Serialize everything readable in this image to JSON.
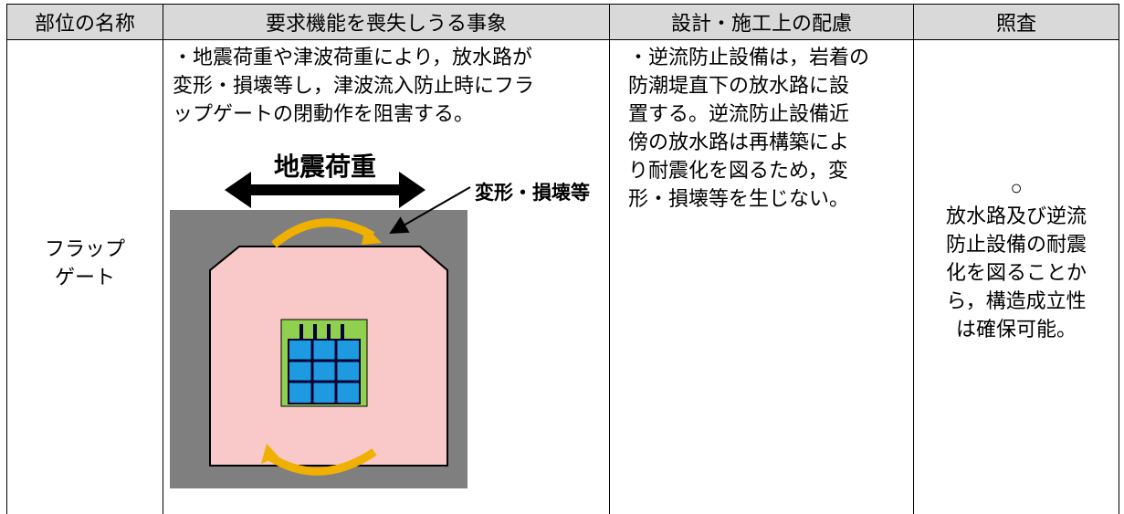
{
  "table": {
    "header": [
      "部位の名称",
      "要求機能を喪失しうる事象",
      "設計・施工上の配慮",
      "照査"
    ],
    "row": {
      "part": [
        "フラップ",
        "ゲート"
      ],
      "event": [
        "・地震荷重や津波荷重により，放水路が",
        "変形・損壊等し，津波流入防止時にフラ",
        "ップゲートの閉動作を阻害する。"
      ],
      "design": [
        "・逆流防止設備は，岩着の",
        "防潮堤直下の放水路に設",
        "置する。逆流防止設備近",
        "傍の放水路は再構築によ",
        "り耐震化を図るため，変",
        "形・損壊等を生じない。"
      ],
      "check": [
        "○",
        "放水路及び逆流",
        "防止設備の耐震",
        "化を図ることか",
        "ら，構造成立性",
        "は確保可能。"
      ]
    }
  },
  "figure": {
    "load_label": "地震荷重",
    "damage_label": "変形・損壊等"
  }
}
